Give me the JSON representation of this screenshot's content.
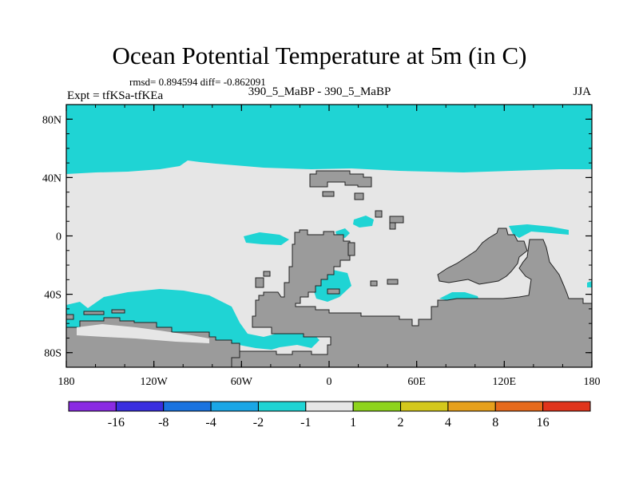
{
  "title": "Ocean Potential Temperature at 5m (in C)",
  "stats_text": "rmsd= 0.894594  diff= -0.862091",
  "expt_label": "Expt = tfKSa-tfKEa",
  "center_label": "390_5_MaBP - 390_5_MaBP",
  "season_label": "JJA",
  "y_ticks": [
    {
      "label": "80N",
      "lat": 80
    },
    {
      "label": "40N",
      "lat": 40
    },
    {
      "label": "0",
      "lat": 0
    },
    {
      "label": "40S",
      "lat": -40
    },
    {
      "label": "80S",
      "lat": -80
    }
  ],
  "x_ticks": [
    {
      "label": "180",
      "lon": -180
    },
    {
      "label": "120W",
      "lon": -120
    },
    {
      "label": "60W",
      "lon": -60
    },
    {
      "label": "0",
      "lon": 0
    },
    {
      "label": "60E",
      "lon": 60
    },
    {
      "label": "120E",
      "lon": 120
    },
    {
      "label": "180",
      "lon": 180
    }
  ],
  "colorbar": {
    "colors": [
      "#8a2be2",
      "#3a2fe0",
      "#1a73e0",
      "#1aa6e6",
      "#1fd4d4",
      "#e6e6e6",
      "#8ed41c",
      "#d4c81c",
      "#e6a01c",
      "#e66a1c",
      "#e0341c"
    ],
    "labels": [
      "-16",
      "-8",
      "-4",
      "-2",
      "-1",
      "1",
      "2",
      "4",
      "8",
      "16"
    ]
  },
  "colors": {
    "ocean_neutral": "#e6e6e6",
    "cool_anomaly": "#1fd4d4",
    "land": "#9b9b9b"
  }
}
